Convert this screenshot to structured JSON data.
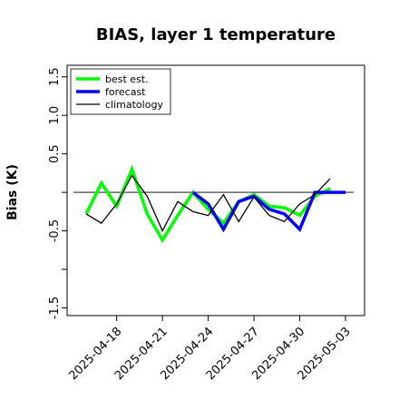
{
  "chart_data": {
    "type": "line",
    "title": "BIAS, layer 1 temperature",
    "xlabel": "",
    "ylabel": "Bias (K)",
    "ylim": [
      -1.6,
      1.65
    ],
    "yticks": [
      -1.5,
      -1.0,
      -0.5,
      0.0,
      0.5,
      1.0,
      1.5
    ],
    "ytick_labels": [
      "-1.5",
      "",
      "-0.5",
      "",
      "0.5",
      "1.0",
      "1.5"
    ],
    "x": [
      "2025-04-16",
      "2025-04-17",
      "2025-04-18",
      "2025-04-19",
      "2025-04-20",
      "2025-04-21",
      "2025-04-22",
      "2025-04-23",
      "2025-04-24",
      "2025-04-25",
      "2025-04-26",
      "2025-04-27",
      "2025-04-28",
      "2025-04-29",
      "2025-04-30",
      "2025-05-01",
      "2025-05-02",
      "2025-05-03"
    ],
    "xticks": [
      "2025-04-18",
      "2025-04-21",
      "2025-04-24",
      "2025-04-27",
      "2025-04-30",
      "2025-05-03"
    ],
    "xtick_colors": [
      "#000000",
      "#000000",
      "#2e8b2e",
      "#000000",
      "#000000",
      "#000000"
    ],
    "reference_line": 0.0,
    "legend_position": "top-left",
    "grid": false,
    "series": [
      {
        "name": "best est.",
        "color": "#00ff00",
        "width": 3.5,
        "values": [
          -0.28,
          0.12,
          -0.18,
          0.3,
          -0.28,
          -0.62,
          -0.3,
          0.0,
          -0.22,
          -0.4,
          -0.12,
          -0.03,
          -0.18,
          -0.2,
          -0.3,
          -0.05,
          0.05,
          null
        ]
      },
      {
        "name": "forecast",
        "color": "#0000ff",
        "width": 3.5,
        "values": [
          null,
          null,
          null,
          null,
          null,
          null,
          null,
          0.0,
          -0.15,
          -0.48,
          -0.12,
          -0.05,
          -0.22,
          -0.28,
          -0.48,
          0.0,
          0.0,
          0.0
        ]
      },
      {
        "name": "climatology",
        "color": "#000000",
        "width": 1.3,
        "values": [
          -0.28,
          -0.4,
          -0.15,
          0.22,
          -0.05,
          -0.5,
          -0.12,
          -0.25,
          -0.3,
          -0.03,
          -0.38,
          -0.06,
          -0.3,
          -0.38,
          -0.15,
          -0.03,
          0.18,
          null
        ]
      }
    ]
  }
}
